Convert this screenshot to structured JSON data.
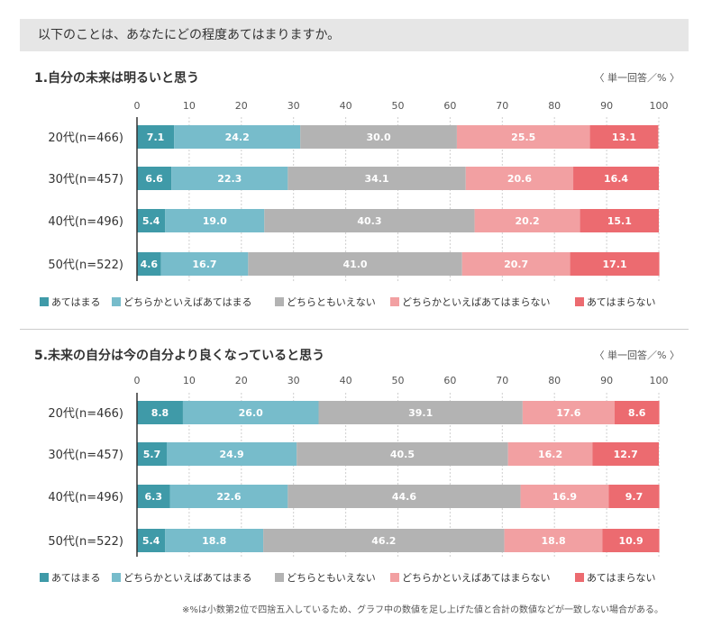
{
  "question": "以下のことは、あなたにどの程度あてはまりますか。",
  "unit_label": "〈 単一回答／% 〉",
  "footnote": "※%は小数第2位で四捨五入しているため、グラフ中の数値を足し上げた値と合計の数値などが一致しない場合がある。",
  "colors": {
    "s1": "#3f9aa8",
    "s2": "#77bccb",
    "s3": "#b3b3b3",
    "s4": "#f2a0a2",
    "s5": "#ec6b70",
    "grid": "#cfcfcf",
    "axis": "#333333"
  },
  "chart_data": [
    {
      "type": "bar",
      "orientation": "horizontal",
      "stacked": true,
      "title": "1.自分の未来は明るいと思う",
      "xlim": [
        0,
        100
      ],
      "xticks": [
        0,
        10,
        20,
        30,
        40,
        50,
        60,
        70,
        80,
        90,
        100
      ],
      "categories": [
        "20代(n=466)",
        "30代(n=457)",
        "40代(n=496)",
        "50代(n=522)"
      ],
      "series": [
        {
          "name": "あてはまる",
          "values": [
            7.1,
            6.6,
            5.4,
            4.6
          ]
        },
        {
          "name": "どちらかといえばあてはまる",
          "values": [
            24.2,
            22.3,
            19.0,
            16.7
          ]
        },
        {
          "name": "どちらともいえない",
          "values": [
            30.0,
            34.1,
            40.3,
            41.0
          ]
        },
        {
          "name": "どちらかといえばあてはまらない",
          "values": [
            25.5,
            20.6,
            20.2,
            20.7
          ]
        },
        {
          "name": "あてはまらない",
          "values": [
            13.1,
            16.4,
            15.1,
            17.1
          ]
        }
      ],
      "legend": "bottom"
    },
    {
      "type": "bar",
      "orientation": "horizontal",
      "stacked": true,
      "title": "5.未来の自分は今の自分より良くなっていると思う",
      "xlim": [
        0,
        100
      ],
      "xticks": [
        0,
        10,
        20,
        30,
        40,
        50,
        60,
        70,
        80,
        90,
        100
      ],
      "categories": [
        "20代(n=466)",
        "30代(n=457)",
        "40代(n=496)",
        "50代(n=522)"
      ],
      "series": [
        {
          "name": "あてはまる",
          "values": [
            8.8,
            5.7,
            6.3,
            5.4
          ]
        },
        {
          "name": "どちらかといえばあてはまる",
          "values": [
            26.0,
            24.9,
            22.6,
            18.8
          ]
        },
        {
          "name": "どちらともいえない",
          "values": [
            39.1,
            40.5,
            44.6,
            46.2
          ]
        },
        {
          "name": "どちらかといえばあてはまらない",
          "values": [
            17.6,
            16.2,
            16.9,
            18.8
          ]
        },
        {
          "name": "あてはまらない",
          "values": [
            8.6,
            12.7,
            9.7,
            10.9
          ]
        }
      ],
      "legend": "bottom"
    }
  ]
}
